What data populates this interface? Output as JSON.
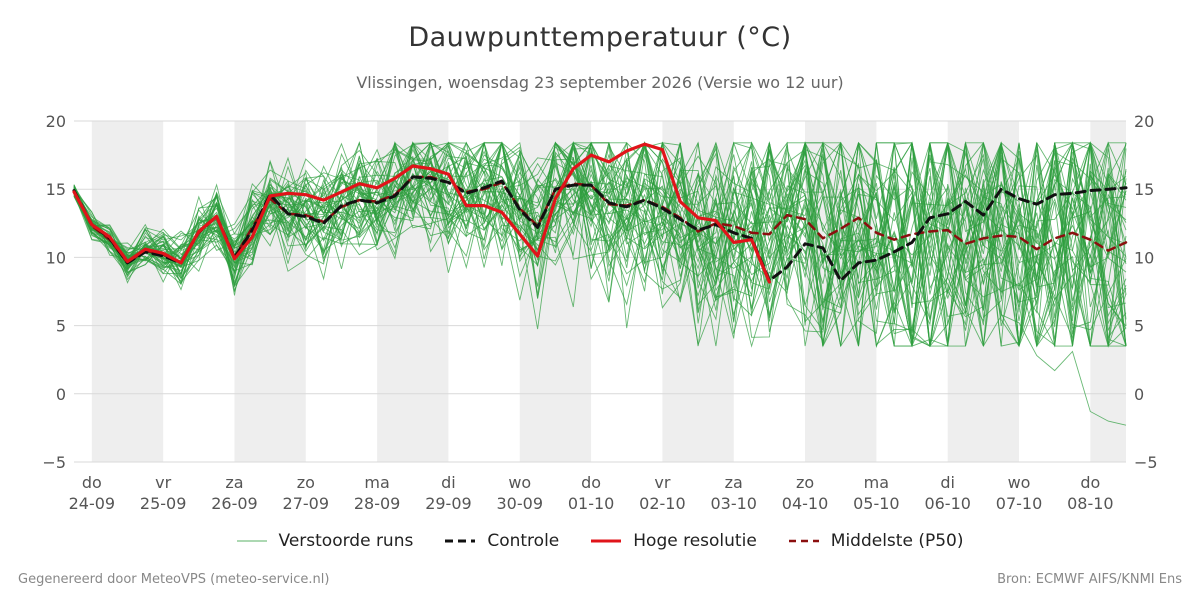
{
  "chart_data": {
    "type": "line",
    "title": "Dauwpunttemperatuur (°C)",
    "subtitle": "Vlissingen, woensdag 23 september 2026 (Versie wo 12 uur)",
    "ylim": [
      -5,
      20
    ],
    "yticks": [
      -5,
      0,
      5,
      10,
      15,
      20
    ],
    "xlim": [
      -0.25,
      14.5
    ],
    "x_ticks": [
      {
        "x": 0,
        "day": "do",
        "date": "24-09"
      },
      {
        "x": 1,
        "day": "vr",
        "date": "25-09"
      },
      {
        "x": 2,
        "day": "za",
        "date": "26-09"
      },
      {
        "x": 3,
        "day": "zo",
        "date": "27-09"
      },
      {
        "x": 4,
        "day": "ma",
        "date": "28-09"
      },
      {
        "x": 5,
        "day": "di",
        "date": "29-09"
      },
      {
        "x": 6,
        "day": "wo",
        "date": "30-09"
      },
      {
        "x": 7,
        "day": "do",
        "date": "01-10"
      },
      {
        "x": 8,
        "day": "vr",
        "date": "02-10"
      },
      {
        "x": 9,
        "day": "za",
        "date": "03-10"
      },
      {
        "x": 10,
        "day": "zo",
        "date": "04-10"
      },
      {
        "x": 11,
        "day": "ma",
        "date": "05-10"
      },
      {
        "x": 12,
        "day": "di",
        "date": "06-10"
      },
      {
        "x": 13,
        "day": "wo",
        "date": "07-10"
      },
      {
        "x": 14,
        "day": "do",
        "date": "08-10"
      }
    ],
    "shaded_bands": [
      [
        0,
        1
      ],
      [
        2,
        3
      ],
      [
        4,
        5
      ],
      [
        6,
        7
      ],
      [
        8,
        9
      ],
      [
        10,
        11
      ],
      [
        12,
        13
      ],
      [
        14,
        14.5
      ]
    ],
    "grid": true,
    "legend_position": "bottom",
    "hoge_resolutie": {
      "name": "Hoge resolutie",
      "x": [
        -0.25,
        0,
        0.25,
        0.5,
        0.75,
        1,
        1.25,
        1.5,
        1.75,
        2,
        2.25,
        2.5,
        2.75,
        3,
        3.25,
        3.5,
        3.75,
        4,
        4.25,
        4.5,
        4.75,
        5,
        5.25,
        5.5,
        5.75,
        6,
        6.25,
        6.5,
        6.75,
        7,
        7.25,
        7.5,
        7.75,
        8,
        8.25,
        8.5,
        8.75,
        9,
        9.25,
        9.5
      ],
      "y": [
        14.8,
        12.4,
        11.5,
        9.7,
        10.6,
        10.3,
        9.6,
        11.9,
        13.0,
        9.9,
        11.5,
        14.5,
        14.7,
        14.6,
        14.2,
        14.8,
        15.4,
        15.1,
        15.8,
        16.7,
        16.5,
        16.1,
        13.8,
        13.8,
        13.3,
        11.7,
        10.1,
        14.3,
        16.5,
        17.5,
        17.0,
        17.8,
        18.3,
        17.9,
        14.1,
        12.9,
        12.7,
        11.1,
        11.3,
        8.2
      ]
    },
    "controle": {
      "name": "Controle",
      "x": [
        -0.25,
        0,
        0.25,
        0.5,
        0.75,
        1,
        1.25,
        1.5,
        1.75,
        2,
        2.25,
        2.5,
        2.75,
        3,
        3.25,
        3.5,
        3.75,
        4,
        4.25,
        4.5,
        4.75,
        5,
        5.25,
        5.5,
        5.75,
        6,
        6.25,
        6.5,
        6.75,
        7,
        7.25,
        7.5,
        7.75,
        8,
        8.25,
        8.5,
        8.75,
        9,
        9.25,
        9.5,
        9.75,
        10,
        10.25,
        10.5,
        10.75,
        11,
        11.25,
        11.5,
        11.75,
        12,
        12.25,
        12.5,
        12.75,
        13,
        13.25,
        13.5,
        13.75,
        14,
        14.25,
        14.5
      ],
      "y": [
        14.9,
        12.4,
        11.4,
        9.6,
        10.4,
        10.1,
        9.6,
        11.9,
        13.0,
        10.0,
        12.0,
        14.6,
        13.2,
        13.0,
        12.5,
        13.8,
        14.2,
        14.0,
        14.5,
        15.9,
        15.8,
        15.5,
        14.7,
        15.1,
        15.6,
        13.5,
        12.2,
        15.0,
        15.3,
        15.3,
        14.0,
        13.7,
        14.2,
        13.6,
        12.8,
        12.0,
        12.4,
        11.8,
        11.4,
        8.3,
        9.3,
        11.0,
        10.7,
        8.3,
        9.6,
        9.8,
        10.4,
        11.1,
        12.9,
        13.2,
        14.1,
        13.1,
        15.0,
        14.3,
        13.9,
        14.6,
        14.7,
        14.9,
        15.0,
        15.1
      ]
    },
    "middelste": {
      "name": "Middelste (P50)",
      "x": [
        -0.25,
        0,
        0.25,
        0.5,
        0.75,
        1,
        1.25,
        1.5,
        1.75,
        2,
        2.25,
        2.5,
        2.75,
        3,
        3.25,
        3.5,
        3.75,
        4,
        4.25,
        4.5,
        4.75,
        5,
        5.25,
        5.5,
        5.75,
        6,
        6.25,
        6.5,
        6.75,
        7,
        7.25,
        7.5,
        7.75,
        8,
        8.25,
        8.5,
        8.75,
        9,
        9.25,
        9.5,
        9.75,
        10,
        10.25,
        10.5,
        10.75,
        11,
        11.25,
        11.5,
        11.75,
        12,
        12.25,
        12.5,
        12.75,
        13,
        13.25,
        13.5,
        13.75,
        14,
        14.25,
        14.5
      ],
      "y": [
        14.9,
        12.3,
        11.3,
        9.6,
        10.5,
        10.2,
        9.6,
        11.8,
        13.0,
        10.0,
        12.2,
        14.3,
        13.2,
        13.1,
        12.6,
        13.7,
        14.2,
        14.1,
        14.6,
        15.9,
        15.9,
        15.5,
        14.8,
        15.0,
        15.5,
        13.6,
        12.3,
        15.0,
        15.4,
        15.3,
        13.9,
        13.8,
        14.2,
        13.7,
        12.9,
        11.9,
        12.5,
        12.3,
        11.8,
        11.7,
        13.1,
        12.8,
        11.4,
        12.1,
        12.9,
        11.8,
        11.3,
        11.7,
        11.9,
        12.0,
        11.0,
        11.4,
        11.6,
        11.5,
        10.6,
        11.4,
        11.8,
        11.3,
        10.5,
        11.1
      ]
    },
    "verstoorde_runs": {
      "name": "Verstoorde runs",
      "count": 50,
      "x_end": 14.5,
      "center": [
        14.9,
        12.3,
        11.3,
        9.6,
        10.5,
        10.2,
        9.6,
        11.8,
        13.0,
        10.0,
        12.2,
        14.3,
        13.2,
        13.1,
        12.6,
        13.7,
        14.2,
        14.1,
        14.6,
        15.9,
        15.9,
        15.5,
        14.8,
        15.0,
        15.5,
        13.6,
        12.3,
        15.0,
        15.4,
        15.3,
        13.9,
        13.8,
        14.2,
        13.7,
        12.9,
        11.9,
        12.5,
        12.3,
        11.8,
        11.7,
        13.1,
        12.8,
        11.4,
        12.1,
        12.9,
        11.8,
        11.3,
        11.7,
        11.9,
        12.0,
        11.0,
        11.4,
        11.6,
        11.5,
        10.6,
        11.4,
        11.8,
        11.3,
        10.5,
        11.1
      ],
      "outlier_tail": [
        17.0,
        16.8,
        15.9,
        14.8,
        5.8,
        5.2,
        2.8,
        1.7,
        3.1,
        -1.3,
        -2.0,
        -2.3
      ]
    },
    "legend": {
      "verstoorde_runs": "Verstoorde runs",
      "controle": "Controle",
      "hoge_resolutie": "Hoge resolutie",
      "middelste": "Middelste (P50)"
    },
    "colors": {
      "ensemble": "#2e9e3e",
      "controle": "#111111",
      "hoge_resolutie": "#e0141a",
      "middelste": "#8b0f0f",
      "band": "#eeeeee",
      "grid": "#d9d9d9"
    }
  },
  "footer": {
    "left": "Gegenereerd door MeteoVPS (meteo-service.nl)",
    "right": "Bron: ECMWF AIFS/KNMI Ens"
  }
}
